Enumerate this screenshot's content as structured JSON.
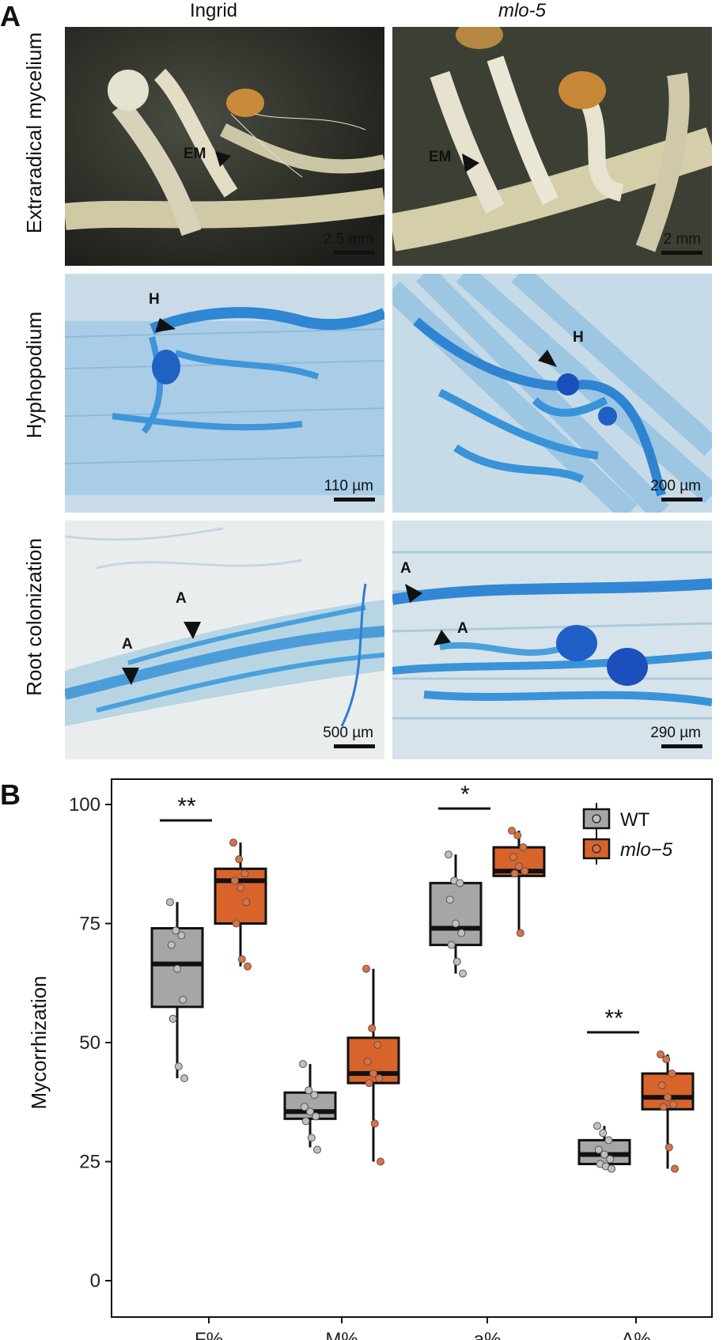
{
  "panel_a": {
    "letter": "A",
    "columns": [
      "Ingrid",
      "mlo-5"
    ],
    "rows": [
      "Extraradical mycelium",
      "Hyphopodium",
      "Root colonization"
    ],
    "images": [
      {
        "marker": "EM",
        "scale": "2.5 mm"
      },
      {
        "marker": "EM",
        "scale": "2 mm"
      },
      {
        "marker": "H",
        "scale": "110 µm"
      },
      {
        "marker": "H",
        "scale": "200 µm"
      },
      {
        "markers": [
          "A",
          "A"
        ],
        "scale": "500 µm"
      },
      {
        "markers": [
          "A",
          "A"
        ],
        "scale": "290 µm"
      }
    ]
  },
  "panel_b": {
    "letter": "B"
  },
  "chart_data": {
    "type": "box",
    "ylabel": "Mycorrhization",
    "ylim": [
      0,
      100
    ],
    "yticks": [
      0,
      25,
      50,
      75,
      100
    ],
    "categories": [
      "F%",
      "M%",
      "a%",
      "A%"
    ],
    "legend": {
      "position": "top-right",
      "entries": [
        "WT",
        "mlo−5"
      ]
    },
    "colors": {
      "WT": "#a6a6a6",
      "mlo5": "#d9642b",
      "wt_point": "#c0c0c0",
      "mlo_point": "#e07040"
    },
    "series": [
      {
        "name": "WT",
        "boxes": [
          {
            "min": 42.5,
            "q1": 57.5,
            "median": 66.5,
            "q3": 74,
            "max": 79.5
          },
          {
            "min": 28,
            "q1": 34,
            "median": 35.5,
            "q3": 39.5,
            "max": 45.5
          },
          {
            "min": 64.5,
            "q1": 70.5,
            "median": 74,
            "q3": 83.5,
            "max": 89.5
          },
          {
            "min": 23.5,
            "q1": 24.5,
            "median": 26.5,
            "q3": 29.5,
            "max": 32.5
          }
        ],
        "points": [
          [
            79.5,
            73.5,
            72.5,
            70.5,
            65.5,
            59,
            55,
            45,
            42.5
          ],
          [
            45.5,
            40,
            39,
            36.5,
            35.5,
            34.5,
            33.5,
            30,
            27.5
          ],
          [
            89.5,
            84,
            83.5,
            80,
            75,
            73,
            70.5,
            67,
            64.5
          ],
          [
            32.5,
            31,
            29.5,
            27.5,
            26.5,
            25.5,
            24.5,
            24,
            23.5
          ]
        ]
      },
      {
        "name": "mlo−5",
        "boxes": [
          {
            "min": 66,
            "q1": 75,
            "median": 84,
            "q3": 86.5,
            "max": 92
          },
          {
            "min": 25,
            "q1": 41.5,
            "median": 43.5,
            "q3": 51,
            "max": 65.5
          },
          {
            "min": 73,
            "q1": 85,
            "median": 86,
            "q3": 91,
            "max": 94.5
          },
          {
            "min": 23.5,
            "q1": 36,
            "median": 38.5,
            "q3": 43.5,
            "max": 47.5
          }
        ],
        "points": [
          [
            92,
            88.5,
            85.5,
            84,
            82.5,
            79.5,
            75,
            67.5,
            66
          ],
          [
            65.5,
            53,
            49.5,
            46,
            43.5,
            42.5,
            41.5,
            33,
            25
          ],
          [
            94.5,
            93.5,
            91,
            89,
            87,
            86,
            85.5,
            73
          ],
          [
            47.5,
            46.5,
            43.5,
            41,
            38.5,
            37,
            36.5,
            28,
            23.5
          ]
        ]
      }
    ],
    "significance": [
      {
        "category": "F%",
        "label": "**"
      },
      {
        "category": "a%",
        "label": "*"
      },
      {
        "category": "A%",
        "label": "**"
      }
    ]
  }
}
